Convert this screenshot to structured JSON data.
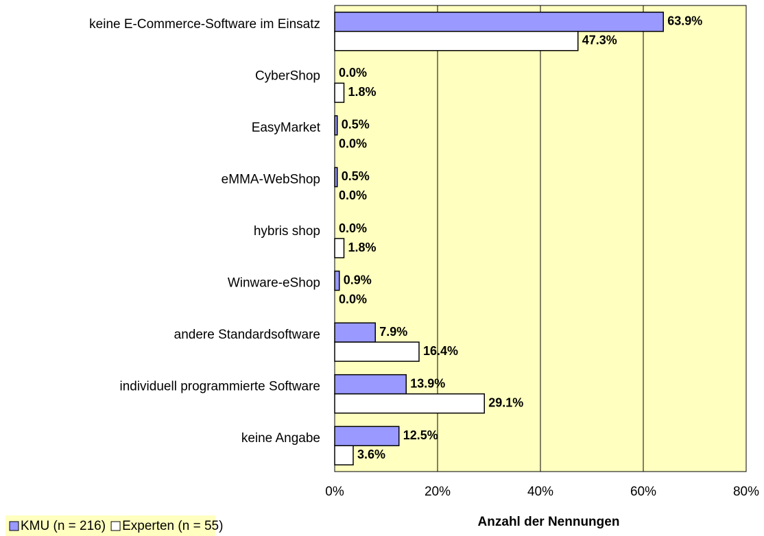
{
  "chart_data": {
    "type": "bar",
    "orientation": "horizontal",
    "x_label": "Anzahl der Nennungen",
    "categories": [
      "keine E-Commerce-Software im Einsatz",
      "CyberShop",
      "EasyMarket",
      "eMMA-WebShop",
      "hybris shop",
      "Winware-eShop",
      "andere Standardsoftware",
      "individuell programmierte Software",
      "keine Angabe"
    ],
    "series": [
      {
        "name": "KMU (n = 216)",
        "color": "#9999ff",
        "values": [
          63.9,
          0,
          0.5,
          0.5,
          0,
          0.9,
          7.9,
          13.9,
          12.5
        ],
        "value_labels": [
          "63.9%",
          "0.0%",
          "0.5%",
          "0.5%",
          "0.0%",
          "0.9%",
          "7.9%",
          "13.9%",
          "12.5%"
        ]
      },
      {
        "name": "Experten (n = 55)",
        "color": "#ffffff",
        "values": [
          47.3,
          1.8,
          0,
          0,
          1.8,
          0,
          16.4,
          29.1,
          3.6
        ],
        "value_labels": [
          "47.3%",
          "1.8%",
          "0.0%",
          "0.0%",
          "1.8%",
          "0.0%",
          "16.4%",
          "29.1%",
          "3.6%"
        ]
      }
    ],
    "xlim": [
      0,
      80
    ],
    "xticks": [
      {
        "value": 0,
        "label": "0%"
      },
      {
        "value": 20,
        "label": "20%"
      },
      {
        "value": 40,
        "label": "40%"
      },
      {
        "value": 60,
        "label": "60%"
      },
      {
        "value": 80,
        "label": "80%"
      }
    ],
    "grid": true,
    "plot_background": "#ffffc0",
    "legend": "bottom-left"
  }
}
